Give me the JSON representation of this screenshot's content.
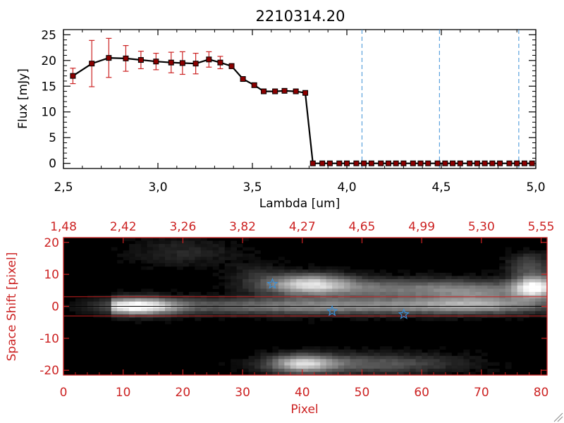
{
  "chart_data": [
    {
      "type": "line",
      "title": "2210314.20",
      "xlabel": "Lambda [um]",
      "ylabel": "Flux [mJy]",
      "xlim": [
        2.5,
        5.0
      ],
      "ylim": [
        -1,
        26
      ],
      "x_ticks": [
        "2.5",
        "3.0",
        "3.5",
        "4.0",
        "4.5",
        "5.0"
      ],
      "y_ticks": [
        "0",
        "5",
        "10",
        "15",
        "20",
        "25"
      ],
      "marker": "square",
      "line_color": "#000000",
      "marker_color": "#8b0000",
      "error_color": "#cc2222",
      "reference_line_color": "#3a8fd6",
      "reference_lines_x": [
        4.08,
        4.49,
        4.91
      ],
      "series": [
        {
          "x": [
            2.55,
            2.65,
            2.74,
            2.83,
            2.91,
            2.99,
            3.07,
            3.13,
            3.2,
            3.27,
            3.33,
            3.39,
            3.45,
            3.51,
            3.56,
            3.62,
            3.67,
            3.73,
            3.78,
            3.82,
            3.87,
            3.91,
            3.96,
            4.0,
            4.05,
            4.09,
            4.13,
            4.18,
            4.22,
            4.26,
            4.3,
            4.35,
            4.39,
            4.43,
            4.48,
            4.52,
            4.56,
            4.6,
            4.65,
            4.69,
            4.73,
            4.77,
            4.81,
            4.86,
            4.9,
            4.94,
            4.98
          ],
          "y": [
            17.0,
            19.4,
            20.5,
            20.4,
            20.1,
            19.8,
            19.6,
            19.5,
            19.4,
            20.2,
            19.6,
            18.9,
            16.4,
            15.2,
            14.0,
            14.0,
            14.1,
            14.0,
            13.7,
            0,
            0,
            0,
            0,
            0,
            0,
            0,
            0,
            0,
            0,
            0,
            0,
            0,
            0,
            0,
            0,
            0,
            0,
            0,
            0,
            0,
            0,
            0,
            0,
            0,
            0,
            0,
            0
          ],
          "yerr": [
            1.5,
            4.5,
            3.8,
            2.5,
            1.7,
            1.6,
            2.0,
            2.2,
            2.0,
            1.5,
            1.2,
            0.5,
            0.4,
            0.4,
            0.3,
            0.3,
            0.3,
            0.3,
            0.3,
            0,
            0,
            0,
            0,
            0,
            0,
            0,
            0,
            0,
            0,
            0,
            0,
            0,
            0,
            0,
            0,
            0,
            0,
            0,
            0,
            0,
            0,
            0,
            0,
            0,
            0,
            0,
            0
          ]
        }
      ]
    },
    {
      "type": "heatmap",
      "xlabel": "Pixel",
      "ylabel": "Space Shift [pixel]",
      "xlim": [
        0,
        81
      ],
      "ylim": [
        -21.5,
        21.5
      ],
      "x_ticks": [
        "0",
        "10",
        "20",
        "30",
        "40",
        "50",
        "60",
        "70",
        "80"
      ],
      "y_ticks": [
        "-20",
        "-10",
        "0",
        "10",
        "20"
      ],
      "top_axis_ticks": [
        "1.48",
        "2.42",
        "3.26",
        "3.82",
        "4.27",
        "4.65",
        "4.99",
        "5.30",
        "5.55"
      ],
      "axis_color": "#cc2222",
      "colormap": "grayscale",
      "aperture_lines_y": [
        3,
        -3
      ],
      "aperture_line_color": "#cc2222",
      "center_line_y": 0,
      "center_line_color": "#000000",
      "stars": [
        {
          "x": 35,
          "y": 7
        },
        {
          "x": 45,
          "y": -1.5
        },
        {
          "x": 57,
          "y": -2.5
        }
      ],
      "star_color": "#3a8fd6",
      "blobs": [
        {
          "x": 12,
          "y": 0,
          "sx": 5,
          "sy": 1.8,
          "amp": 1.0
        },
        {
          "x": 45,
          "y": 0,
          "sx": 20,
          "sy": 1.8,
          "amp": 0.55
        },
        {
          "x": 70,
          "y": 0.3,
          "sx": 8,
          "sy": 1.8,
          "amp": 0.4
        },
        {
          "x": 41,
          "y": 7,
          "sx": 5,
          "sy": 2.2,
          "amp": 0.75
        },
        {
          "x": 56,
          "y": 5.5,
          "sx": 12,
          "sy": 2.2,
          "amp": 0.45
        },
        {
          "x": 70,
          "y": 4.5,
          "sx": 6,
          "sy": 2.2,
          "amp": 0.3
        },
        {
          "x": 79,
          "y": 6,
          "sx": 2.5,
          "sy": 2.5,
          "amp": 0.95
        },
        {
          "x": 78,
          "y": 13,
          "sx": 2.5,
          "sy": 2.5,
          "amp": 0.3
        },
        {
          "x": 40,
          "y": -18,
          "sx": 4,
          "sy": 2.0,
          "amp": 0.7
        },
        {
          "x": 52,
          "y": -18,
          "sx": 10,
          "sy": 2.2,
          "amp": 0.35
        },
        {
          "x": 20,
          "y": 17,
          "sx": 6,
          "sy": 3,
          "amp": 0.15
        },
        {
          "x": 32,
          "y": 10,
          "sx": 3,
          "sy": 3,
          "amp": 0.12
        }
      ]
    }
  ]
}
